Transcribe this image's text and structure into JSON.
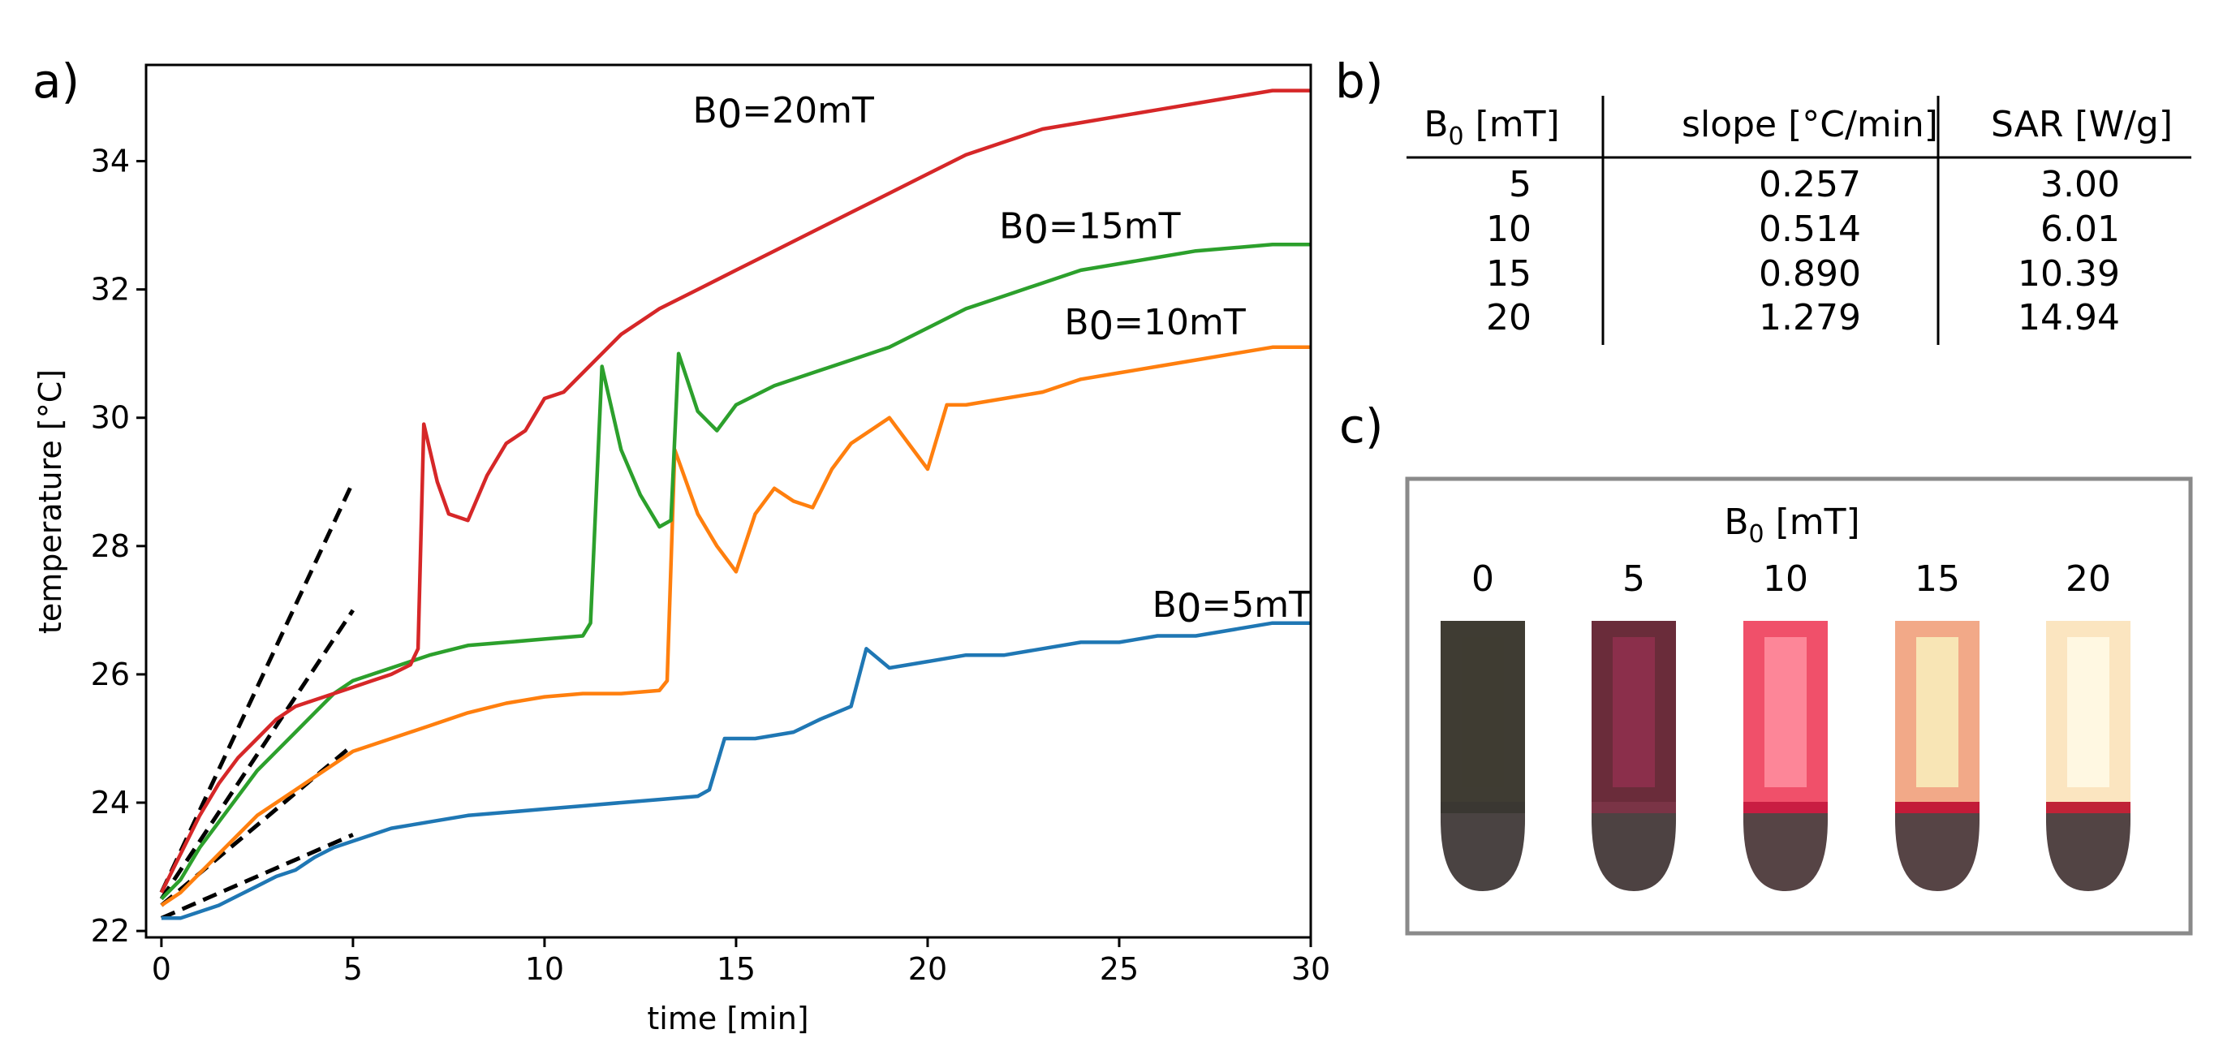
{
  "panels": {
    "a": "a)",
    "b": "b)",
    "c": "c)"
  },
  "chart_data": {
    "type": "line",
    "title": "",
    "xlabel": "time [min]",
    "ylabel": "temperature [°C]",
    "xlim": [
      -0.4,
      30
    ],
    "ylim": [
      21.9,
      35.5
    ],
    "xticks": [
      0,
      5,
      10,
      15,
      20,
      25,
      30
    ],
    "yticks": [
      22,
      24,
      26,
      28,
      30,
      32,
      34
    ],
    "grid": false,
    "series": [
      {
        "name": "B0=5mT",
        "label_prefix": "B",
        "label_sub": "0",
        "label_suffix": "=5mT",
        "label_x": 30,
        "label_y": 26.9,
        "color": "#1f77b4",
        "points": [
          [
            0,
            22.2
          ],
          [
            0.5,
            22.2
          ],
          [
            1,
            22.3
          ],
          [
            1.5,
            22.4
          ],
          [
            2,
            22.55
          ],
          [
            2.5,
            22.7
          ],
          [
            3,
            22.85
          ],
          [
            3.5,
            22.95
          ],
          [
            4,
            23.15
          ],
          [
            4.5,
            23.3
          ],
          [
            5,
            23.4
          ],
          [
            5.5,
            23.5
          ],
          [
            6,
            23.6
          ],
          [
            7,
            23.7
          ],
          [
            8,
            23.8
          ],
          [
            9,
            23.85
          ],
          [
            10,
            23.9
          ],
          [
            11,
            23.95
          ],
          [
            12,
            24.0
          ],
          [
            13,
            24.05
          ],
          [
            14,
            24.1
          ],
          [
            14.3,
            24.2
          ],
          [
            14.7,
            25.0
          ],
          [
            15.5,
            25.0
          ],
          [
            16.5,
            25.1
          ],
          [
            17.2,
            25.3
          ],
          [
            18,
            25.5
          ],
          [
            18.4,
            26.4
          ],
          [
            19,
            26.1
          ],
          [
            20,
            26.2
          ],
          [
            21,
            26.3
          ],
          [
            22,
            26.3
          ],
          [
            23,
            26.4
          ],
          [
            24,
            26.5
          ],
          [
            25,
            26.5
          ],
          [
            26,
            26.6
          ],
          [
            27,
            26.6
          ],
          [
            28,
            26.7
          ],
          [
            29,
            26.8
          ],
          [
            30,
            26.8
          ]
        ]
      },
      {
        "name": "B0=10mT",
        "label_prefix": "B",
        "label_sub": "0",
        "label_suffix": "=10mT",
        "label_x": 28.3,
        "label_y": 31.3,
        "color": "#ff7f0e",
        "points": [
          [
            0,
            22.4
          ],
          [
            0.5,
            22.6
          ],
          [
            1,
            22.9
          ],
          [
            1.5,
            23.2
          ],
          [
            2,
            23.5
          ],
          [
            2.5,
            23.8
          ],
          [
            3,
            24.0
          ],
          [
            3.5,
            24.2
          ],
          [
            4,
            24.4
          ],
          [
            4.5,
            24.6
          ],
          [
            5,
            24.8
          ],
          [
            6,
            25.0
          ],
          [
            7,
            25.2
          ],
          [
            8,
            25.4
          ],
          [
            9,
            25.55
          ],
          [
            10,
            25.65
          ],
          [
            11,
            25.7
          ],
          [
            12,
            25.7
          ],
          [
            13,
            25.75
          ],
          [
            13.2,
            25.9
          ],
          [
            13.4,
            29.5
          ],
          [
            14,
            28.5
          ],
          [
            14.5,
            28.0
          ],
          [
            15,
            27.6
          ],
          [
            15.5,
            28.5
          ],
          [
            16,
            28.9
          ],
          [
            16.5,
            28.7
          ],
          [
            17,
            28.6
          ],
          [
            17.5,
            29.2
          ],
          [
            18,
            29.6
          ],
          [
            18.5,
            29.8
          ],
          [
            19,
            30.0
          ],
          [
            19.5,
            29.6
          ],
          [
            20,
            29.2
          ],
          [
            20.5,
            30.2
          ],
          [
            21,
            30.2
          ],
          [
            22,
            30.3
          ],
          [
            23,
            30.4
          ],
          [
            24,
            30.6
          ],
          [
            25,
            30.7
          ],
          [
            26,
            30.8
          ],
          [
            27,
            30.9
          ],
          [
            28,
            31.0
          ],
          [
            29,
            31.1
          ],
          [
            30,
            31.1
          ]
        ]
      },
      {
        "name": "B0=15mT",
        "label_prefix": "B",
        "label_sub": "0",
        "label_suffix": "=15mT",
        "label_x": 26.6,
        "label_y": 32.8,
        "color": "#2ca02c",
        "points": [
          [
            0,
            22.5
          ],
          [
            0.5,
            22.8
          ],
          [
            1,
            23.3
          ],
          [
            1.5,
            23.7
          ],
          [
            2,
            24.1
          ],
          [
            2.5,
            24.5
          ],
          [
            3,
            24.8
          ],
          [
            3.5,
            25.1
          ],
          [
            4,
            25.4
          ],
          [
            4.5,
            25.7
          ],
          [
            5,
            25.9
          ],
          [
            6,
            26.1
          ],
          [
            7,
            26.3
          ],
          [
            8,
            26.45
          ],
          [
            9,
            26.5
          ],
          [
            10,
            26.55
          ],
          [
            11,
            26.6
          ],
          [
            11.2,
            26.8
          ],
          [
            11.5,
            30.8
          ],
          [
            12,
            29.5
          ],
          [
            12.5,
            28.8
          ],
          [
            13,
            28.3
          ],
          [
            13.3,
            28.4
          ],
          [
            13.5,
            31.0
          ],
          [
            14,
            30.1
          ],
          [
            14.5,
            29.8
          ],
          [
            15,
            30.2
          ],
          [
            16,
            30.5
          ],
          [
            17,
            30.7
          ],
          [
            18,
            30.9
          ],
          [
            19,
            31.1
          ],
          [
            20,
            31.4
          ],
          [
            21,
            31.7
          ],
          [
            22,
            31.9
          ],
          [
            23,
            32.1
          ],
          [
            24,
            32.3
          ],
          [
            25,
            32.4
          ],
          [
            26,
            32.5
          ],
          [
            27,
            32.6
          ],
          [
            28,
            32.65
          ],
          [
            29,
            32.7
          ],
          [
            30,
            32.7
          ]
        ]
      },
      {
        "name": "B0=20mT",
        "label_prefix": "B",
        "label_sub": "0",
        "label_suffix": "=20mT",
        "label_x": 18.6,
        "label_y": 34.6,
        "color": "#d62728",
        "points": [
          [
            0,
            22.6
          ],
          [
            0.5,
            23.2
          ],
          [
            1,
            23.8
          ],
          [
            1.5,
            24.3
          ],
          [
            2,
            24.7
          ],
          [
            2.5,
            25.0
          ],
          [
            3,
            25.3
          ],
          [
            3.5,
            25.5
          ],
          [
            4,
            25.6
          ],
          [
            4.5,
            25.7
          ],
          [
            5,
            25.8
          ],
          [
            5.5,
            25.9
          ],
          [
            6,
            26.0
          ],
          [
            6.5,
            26.15
          ],
          [
            6.7,
            26.4
          ],
          [
            6.85,
            29.9
          ],
          [
            7.2,
            29.0
          ],
          [
            7.5,
            28.5
          ],
          [
            8,
            28.4
          ],
          [
            8.5,
            29.1
          ],
          [
            9,
            29.6
          ],
          [
            9.5,
            29.8
          ],
          [
            10,
            30.3
          ],
          [
            10.5,
            30.4
          ],
          [
            11,
            30.7
          ],
          [
            11.5,
            31.0
          ],
          [
            12,
            31.3
          ],
          [
            12.5,
            31.5
          ],
          [
            13,
            31.7
          ],
          [
            14,
            32.0
          ],
          [
            15,
            32.3
          ],
          [
            16,
            32.6
          ],
          [
            17,
            32.9
          ],
          [
            18,
            33.2
          ],
          [
            19,
            33.5
          ],
          [
            20,
            33.8
          ],
          [
            21,
            34.1
          ],
          [
            22,
            34.3
          ],
          [
            23,
            34.5
          ],
          [
            24,
            34.6
          ],
          [
            25,
            34.7
          ],
          [
            26,
            34.8
          ],
          [
            27,
            34.9
          ],
          [
            28,
            35.0
          ],
          [
            29,
            35.1
          ],
          [
            30,
            35.1
          ]
        ]
      }
    ],
    "fit_lines": [
      {
        "name": "fit-5mT",
        "color": "#000000",
        "points": [
          [
            0,
            22.2
          ],
          [
            5,
            23.5
          ]
        ]
      },
      {
        "name": "fit-10mT",
        "color": "#000000",
        "points": [
          [
            0,
            22.4
          ],
          [
            5,
            24.9
          ]
        ]
      },
      {
        "name": "fit-15mT",
        "color": "#000000",
        "points": [
          [
            0,
            22.5
          ],
          [
            5,
            27.0
          ]
        ]
      },
      {
        "name": "fit-20mT",
        "color": "#000000",
        "points": [
          [
            0,
            22.6
          ],
          [
            5,
            29.0
          ]
        ]
      }
    ]
  },
  "table": {
    "headers": [
      {
        "prefix": "B",
        "sub": "0",
        "suffix": " [mT]"
      },
      {
        "prefix": "slope [°C/min]",
        "sub": "",
        "suffix": ""
      },
      {
        "prefix": "SAR [W/g]",
        "sub": "",
        "suffix": ""
      }
    ],
    "rows": [
      [
        "5",
        "0.257",
        "3.00"
      ],
      [
        "10",
        "0.514",
        "6.01"
      ],
      [
        "15",
        "0.890",
        "10.39"
      ],
      [
        "20",
        "1.279",
        "14.94"
      ]
    ]
  },
  "photo": {
    "title_prefix": "B",
    "title_sub": "0",
    "title_suffix": " [mT]",
    "tube_labels": [
      "0",
      "5",
      "10",
      "15",
      "20"
    ],
    "tube_colors": {
      "body": [
        "#3f3c33",
        "#6a2c3a",
        "#f0506a",
        "#f2a988",
        "#fbe5c0"
      ],
      "core": [
        "#3f3c33",
        "#90304f",
        "#ff8fa0",
        "#f9f0bd",
        "#fffbe8"
      ],
      "rim": [
        "#3a3732",
        "#7a3446",
        "#c91d42",
        "#c31b38",
        "#c02337"
      ],
      "base": [
        "#4a4342",
        "#4d4242",
        "#564445",
        "#564445",
        "#524444"
      ]
    }
  }
}
